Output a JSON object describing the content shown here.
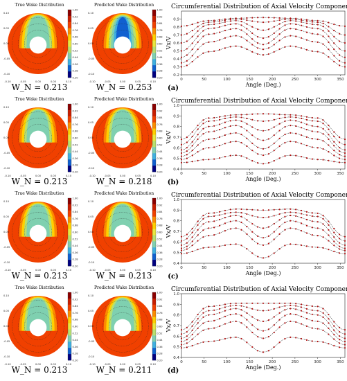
{
  "panels": [
    {
      "label": "(a)",
      "true_title": "True Wake Distribution",
      "pred_title": "Predicted Wake Distribution",
      "true_wn": "W_N = 0.213",
      "pred_wn": "W_N = 0.253"
    },
    {
      "label": "(b)",
      "true_title": "True Wake Distribution",
      "pred_title": "Predicted Wake Distribution",
      "true_wn": "W_N = 0.213",
      "pred_wn": "W_N = 0.218"
    },
    {
      "label": "(c)",
      "true_title": "True Wake Distribution",
      "pred_title": "Predicted Wake Distribution",
      "true_wn": "W_N = 0.213",
      "pred_wn": "W_N = 0.213"
    },
    {
      "label": "(d)",
      "true_title": "True Wake Distribution",
      "pred_title": "Predicted Wake Distribution",
      "true_wn": "W_N = 0.213",
      "pred_wn": "W_N = 0.211"
    }
  ],
  "colorbar": {
    "ticks": [
      "1.00",
      "0.92",
      "0.84",
      "0.76",
      "0.68",
      "0.60",
      "0.52",
      "0.44",
      "0.36",
      "0.28",
      "0.20"
    ],
    "colors": [
      "#8b0000",
      "#c81e00",
      "#f04000",
      "#fb8c00",
      "#ffd000",
      "#e8e840",
      "#b8e070",
      "#7fd0b0",
      "#3fb0e0",
      "#1060d0",
      "#000080"
    ]
  },
  "contour_ticks": {
    "x": [
      "-0.10",
      "-0.05",
      "0.00",
      "0.05",
      "0.10"
    ],
    "y": [
      "0.10",
      "0.05",
      "0.00",
      "-0.05",
      "-0.10"
    ]
  },
  "chart_data": [
    {
      "type": "line",
      "panel": "(a)",
      "title": "Circumferential Distribution of Axial Velocity Components",
      "xlabel": "Angle (Deg.)",
      "ylabel": "Vx/V",
      "xlim": [
        0,
        360
      ],
      "ylim": [
        0.2,
        1.0
      ],
      "xticks": [
        0,
        50,
        100,
        150,
        200,
        250,
        300,
        350
      ],
      "yticks": [
        0.2,
        0.3,
        0.4,
        0.5,
        0.6,
        0.7,
        0.8,
        0.9
      ],
      "series": [
        {
          "x": [
            0,
            60,
            120,
            180,
            240,
            300,
            360
          ],
          "values": [
            0.81,
            0.88,
            0.91,
            0.92,
            0.91,
            0.88,
            0.81
          ]
        },
        {
          "x": [
            0,
            60,
            120,
            180,
            240,
            300,
            360
          ],
          "values": [
            0.7,
            0.86,
            0.9,
            0.86,
            0.9,
            0.86,
            0.7
          ]
        },
        {
          "x": [
            0,
            60,
            120,
            180,
            240,
            300,
            360
          ],
          "values": [
            0.6,
            0.83,
            0.88,
            0.76,
            0.88,
            0.83,
            0.6
          ]
        },
        {
          "x": [
            0,
            60,
            120,
            180,
            240,
            300,
            360
          ],
          "values": [
            0.5,
            0.78,
            0.84,
            0.66,
            0.84,
            0.78,
            0.5
          ]
        },
        {
          "x": [
            0,
            60,
            120,
            180,
            240,
            300,
            360
          ],
          "values": [
            0.42,
            0.71,
            0.78,
            0.58,
            0.78,
            0.71,
            0.42
          ]
        },
        {
          "x": [
            0,
            60,
            120,
            180,
            240,
            300,
            360
          ],
          "values": [
            0.35,
            0.61,
            0.69,
            0.52,
            0.69,
            0.61,
            0.35
          ]
        },
        {
          "x": [
            0,
            60,
            120,
            180,
            240,
            300,
            360
          ],
          "values": [
            0.3,
            0.49,
            0.56,
            0.45,
            0.56,
            0.49,
            0.3
          ]
        }
      ]
    },
    {
      "type": "line",
      "panel": "(b)",
      "title": "Circumferential Distribution of Axial Velocity Components",
      "xlabel": "Angle (Deg.)",
      "ylabel": "Vx/V",
      "xlim": [
        0,
        360
      ],
      "ylim": [
        0.4,
        1.0
      ],
      "xticks": [
        0,
        50,
        100,
        150,
        200,
        250,
        300,
        350
      ],
      "yticks": [
        0.4,
        0.5,
        0.6,
        0.7,
        0.8,
        0.9,
        1.0
      ],
      "series": [
        {
          "x": [
            0,
            60,
            120,
            180,
            240,
            300,
            360
          ],
          "values": [
            0.68,
            0.88,
            0.91,
            0.92,
            0.91,
            0.88,
            0.68
          ]
        },
        {
          "x": [
            0,
            60,
            120,
            180,
            240,
            300,
            360
          ],
          "values": [
            0.63,
            0.85,
            0.89,
            0.85,
            0.89,
            0.85,
            0.63
          ]
        },
        {
          "x": [
            0,
            60,
            120,
            180,
            240,
            300,
            360
          ],
          "values": [
            0.58,
            0.8,
            0.86,
            0.76,
            0.86,
            0.8,
            0.58
          ]
        },
        {
          "x": [
            0,
            60,
            120,
            180,
            240,
            300,
            360
          ],
          "values": [
            0.55,
            0.75,
            0.81,
            0.67,
            0.81,
            0.75,
            0.55
          ]
        },
        {
          "x": [
            0,
            60,
            120,
            180,
            240,
            300,
            360
          ],
          "values": [
            0.52,
            0.68,
            0.74,
            0.59,
            0.74,
            0.68,
            0.52
          ]
        },
        {
          "x": [
            0,
            60,
            120,
            180,
            240,
            300,
            360
          ],
          "values": [
            0.49,
            0.6,
            0.66,
            0.53,
            0.66,
            0.6,
            0.49
          ]
        },
        {
          "x": [
            0,
            60,
            120,
            180,
            240,
            300,
            360
          ],
          "values": [
            0.46,
            0.49,
            0.53,
            0.45,
            0.53,
            0.49,
            0.46
          ]
        }
      ]
    },
    {
      "type": "line",
      "panel": "(c)",
      "title": "Circumferential Distribution of Axial Velocity Components",
      "xlabel": "Angle (Deg.)",
      "ylabel": "Vx/V",
      "xlim": [
        0,
        360
      ],
      "ylim": [
        0.4,
        1.0
      ],
      "xticks": [
        0,
        50,
        100,
        150,
        200,
        250,
        300,
        350
      ],
      "yticks": [
        0.4,
        0.5,
        0.6,
        0.7,
        0.8,
        0.9,
        1.0
      ],
      "series": [
        {
          "x": [
            0,
            60,
            120,
            180,
            240,
            300,
            360
          ],
          "values": [
            0.65,
            0.87,
            0.91,
            0.9,
            0.91,
            0.87,
            0.65
          ]
        },
        {
          "x": [
            0,
            60,
            120,
            180,
            240,
            300,
            360
          ],
          "values": [
            0.61,
            0.84,
            0.88,
            0.83,
            0.88,
            0.84,
            0.61
          ]
        },
        {
          "x": [
            0,
            60,
            120,
            180,
            240,
            300,
            360
          ],
          "values": [
            0.57,
            0.79,
            0.85,
            0.73,
            0.85,
            0.79,
            0.57
          ]
        },
        {
          "x": [
            0,
            60,
            120,
            180,
            240,
            300,
            360
          ],
          "values": [
            0.54,
            0.73,
            0.8,
            0.64,
            0.8,
            0.73,
            0.54
          ]
        },
        {
          "x": [
            0,
            60,
            120,
            180,
            240,
            300,
            360
          ],
          "values": [
            0.52,
            0.66,
            0.73,
            0.57,
            0.73,
            0.66,
            0.52
          ]
        },
        {
          "x": [
            0,
            60,
            120,
            180,
            240,
            300,
            360
          ],
          "values": [
            0.49,
            0.55,
            0.58,
            0.45,
            0.58,
            0.55,
            0.49
          ]
        }
      ]
    },
    {
      "type": "line",
      "panel": "(d)",
      "title": "Circumferential Distribution of Axial Velocity Components",
      "xlabel": "Angle (Deg.)",
      "ylabel": "Vx/V",
      "xlim": [
        0,
        360
      ],
      "ylim": [
        0.4,
        1.0
      ],
      "xticks": [
        0,
        50,
        100,
        150,
        200,
        250,
        300,
        350
      ],
      "yticks": [
        0.4,
        0.5,
        0.6,
        0.7,
        0.8,
        0.9,
        1.0
      ],
      "series": [
        {
          "x": [
            0,
            60,
            120,
            180,
            240,
            300,
            360
          ],
          "values": [
            0.66,
            0.88,
            0.91,
            0.91,
            0.91,
            0.88,
            0.66
          ]
        },
        {
          "x": [
            0,
            60,
            120,
            180,
            240,
            300,
            360
          ],
          "values": [
            0.62,
            0.84,
            0.89,
            0.84,
            0.89,
            0.84,
            0.62
          ]
        },
        {
          "x": [
            0,
            60,
            120,
            180,
            240,
            300,
            360
          ],
          "values": [
            0.58,
            0.8,
            0.86,
            0.74,
            0.86,
            0.8,
            0.58
          ]
        },
        {
          "x": [
            0,
            60,
            120,
            180,
            240,
            300,
            360
          ],
          "values": [
            0.55,
            0.74,
            0.81,
            0.65,
            0.81,
            0.74,
            0.55
          ]
        },
        {
          "x": [
            0,
            60,
            120,
            180,
            240,
            300,
            360
          ],
          "values": [
            0.52,
            0.67,
            0.74,
            0.58,
            0.74,
            0.67,
            0.52
          ]
        },
        {
          "x": [
            0,
            60,
            120,
            180,
            240,
            300,
            360
          ],
          "values": [
            0.49,
            0.55,
            0.59,
            0.45,
            0.59,
            0.55,
            0.49
          ]
        }
      ]
    }
  ]
}
